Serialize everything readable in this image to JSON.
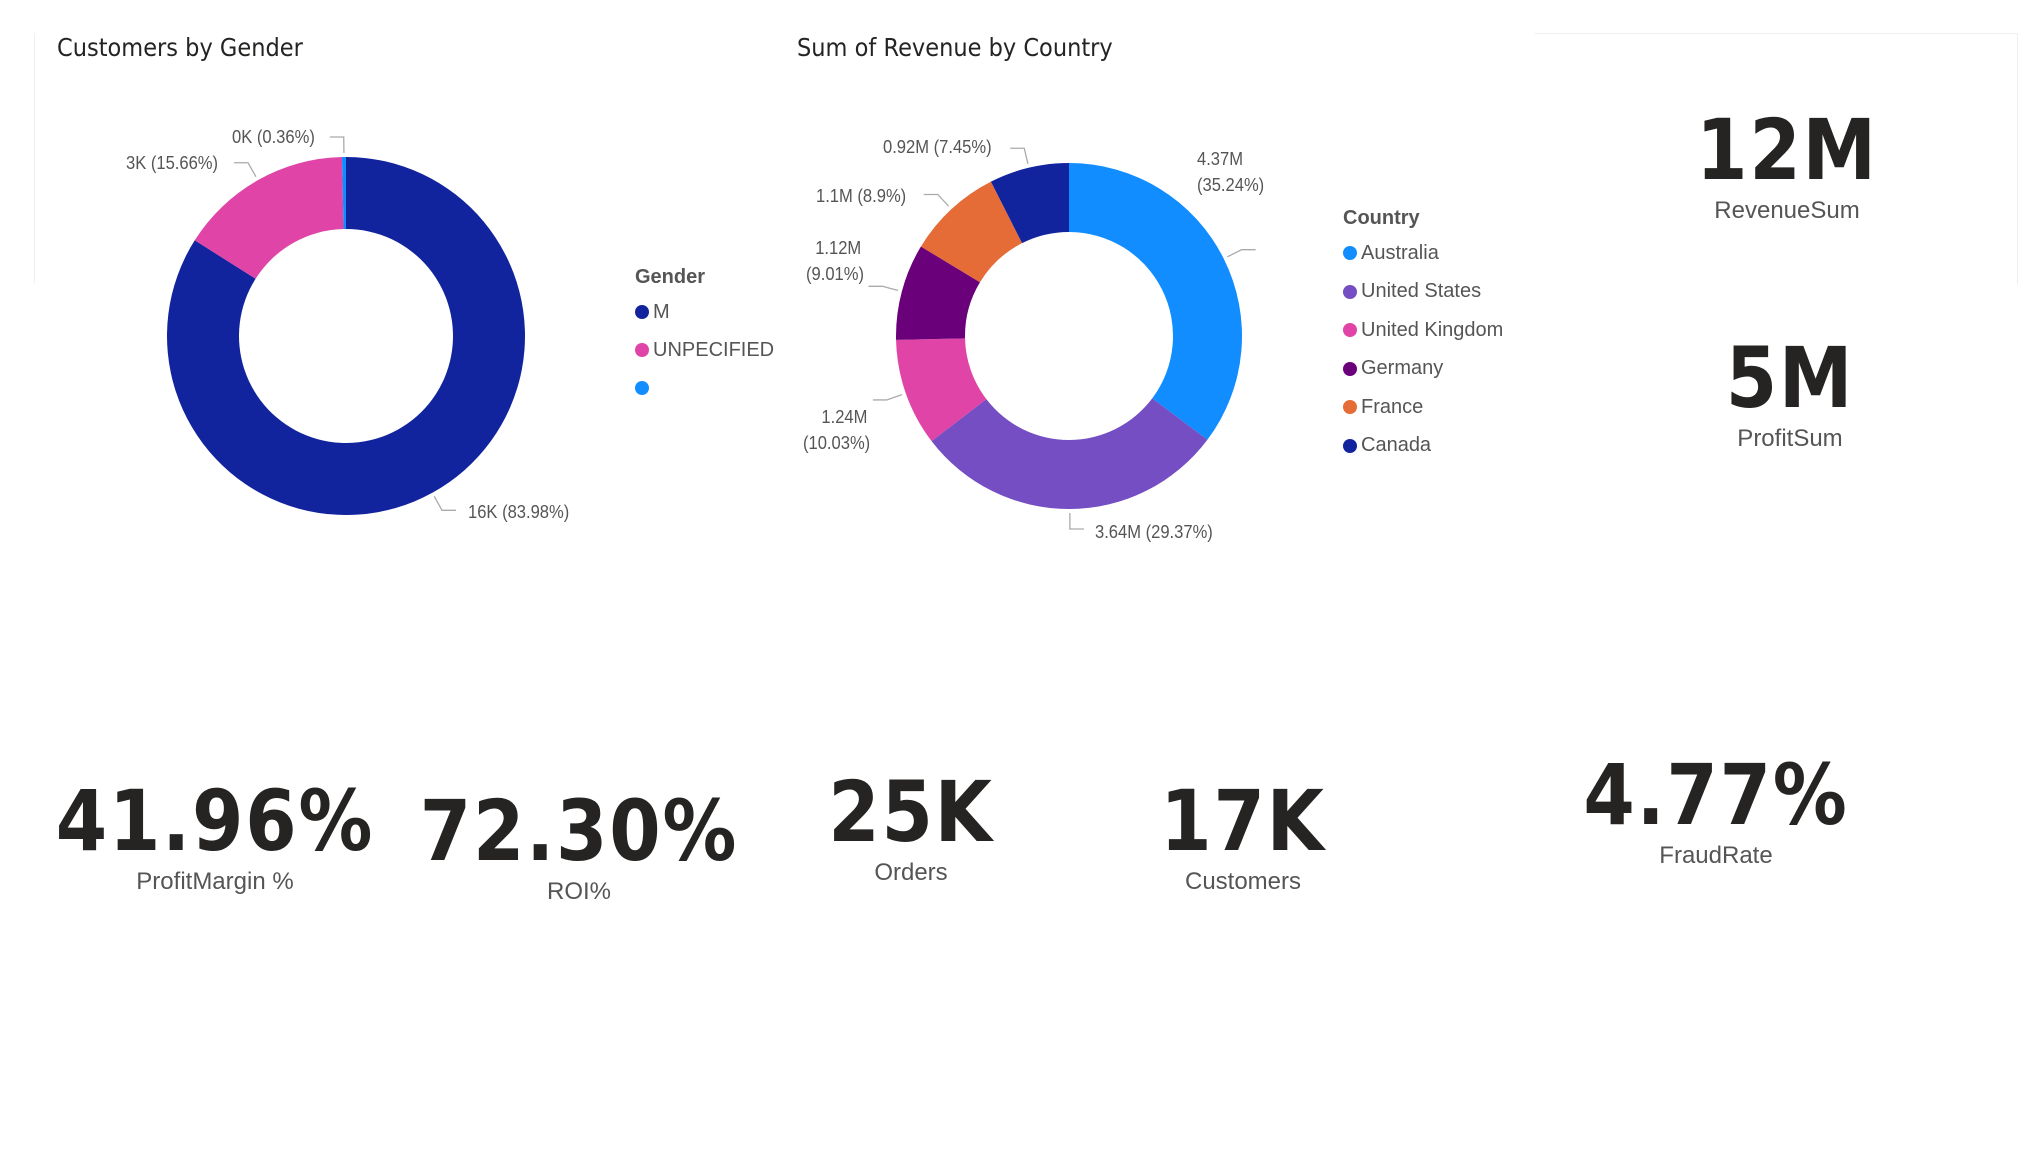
{
  "chart_data": [
    {
      "type": "pie",
      "donut": true,
      "title": "Customers by Gender",
      "legend_title": "Gender",
      "legend_position": "right",
      "categories": [
        "M",
        "UNPECIFIED",
        ""
      ],
      "values": [
        16,
        3,
        0
      ],
      "percents": [
        83.98,
        15.66,
        0.36
      ],
      "data_labels": [
        "16K (83.98%)",
        "3K (15.66%)",
        "0K (0.36%)"
      ],
      "colors": [
        "#12239E",
        "#E044A7",
        "#118DFF"
      ]
    },
    {
      "type": "pie",
      "donut": true,
      "title": "Sum of Revenue by Country",
      "legend_title": "Country",
      "legend_position": "right",
      "categories": [
        "Australia",
        "United States",
        "United Kingdom",
        "Germany",
        "France",
        "Canada"
      ],
      "values": [
        4.37,
        3.64,
        1.24,
        1.12,
        1.1,
        0.92
      ],
      "percents": [
        35.24,
        29.37,
        10.03,
        9.01,
        8.9,
        7.45
      ],
      "data_labels": [
        [
          "4.37M",
          "(35.24%)"
        ],
        [
          "3.64M (29.37%)"
        ],
        [
          "1.24M",
          "(10.03%)"
        ],
        [
          "1.12M",
          "(9.01%)"
        ],
        [
          "1.1M (8.9%)"
        ],
        [
          "0.92M (7.45%)"
        ]
      ],
      "colors": [
        "#118DFF",
        "#744EC2",
        "#E044A7",
        "#6B007B",
        "#E66C37",
        "#12239E"
      ]
    }
  ],
  "kpis": {
    "revenue": {
      "value": "12M",
      "label": "RevenueSum"
    },
    "profit": {
      "value": "5M",
      "label": "ProfitSum"
    },
    "margin": {
      "value": "41.96%",
      "label": "ProfitMargin %"
    },
    "roi": {
      "value": "72.30%",
      "label": "ROI%"
    },
    "orders": {
      "value": "25K",
      "label": "Orders"
    },
    "customers": {
      "value": "17K",
      "label": "Customers"
    },
    "fraud": {
      "value": "4.77%",
      "label": "FraudRate"
    }
  }
}
